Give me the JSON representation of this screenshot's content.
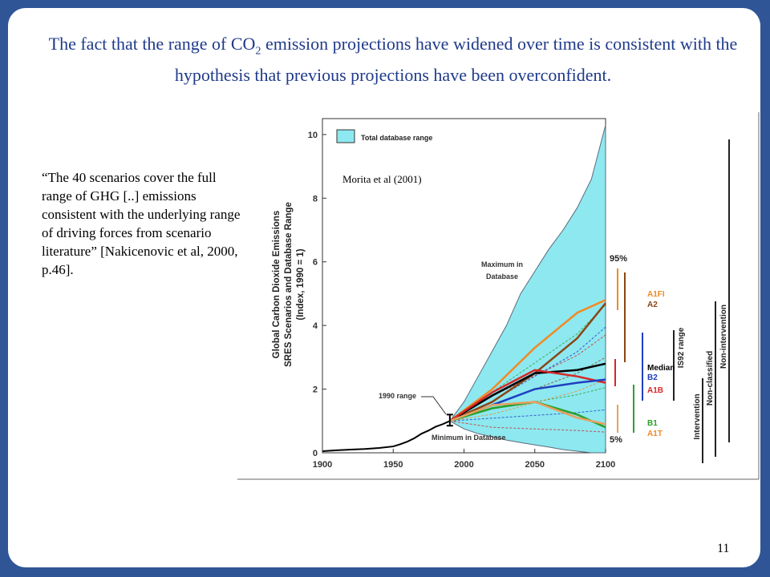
{
  "slide": {
    "title_part1": "The fact that the range of CO",
    "title_sub": "2",
    "title_part2": " emission projections have widened over time is consistent with the hypothesis that previous projections have been overconfident.",
    "quote": "“The 40 scenarios cover the full range of GHG [..] emissions consistent with the underlying range of driving forces from scenario literature” [Nakicenovic et al, 2000, p.46].",
    "page_number": "11"
  },
  "colors": {
    "background": "#2f5597",
    "title": "#1f3a8a",
    "database_range": "#8ee8f0",
    "historical": "#000000"
  },
  "chart_data": {
    "type": "area",
    "citation": "Morita et al (2001)",
    "ylabel_lines": [
      "Global Carbon Dioxide Emissions",
      "SRES Scenarios and Database Range",
      "(Index, 1990 = 1)"
    ],
    "x_ticks": [
      "1900",
      "1950",
      "2000",
      "2050",
      "2100"
    ],
    "y_ticks": [
      "0",
      "2",
      "4",
      "6",
      "8",
      "10"
    ],
    "xlim": [
      1900,
      2100
    ],
    "ylim": [
      0,
      10.5
    ],
    "legend": "Total database range",
    "annotations": {
      "max": [
        "Maximum in",
        "Database"
      ],
      "min": "Minimum in  Database",
      "range_1990": "1990 range"
    },
    "database_range": {
      "x": [
        1990,
        2000,
        2010,
        2020,
        2030,
        2040,
        2050,
        2060,
        2070,
        2080,
        2090,
        2100
      ],
      "upper": [
        1.0,
        1.6,
        2.4,
        3.2,
        4.0,
        5.0,
        5.7,
        6.4,
        7.0,
        7.7,
        8.6,
        10.3
      ],
      "lower": [
        1.0,
        0.75,
        0.6,
        0.5,
        0.4,
        0.32,
        0.25,
        0.18,
        0.1,
        0.05,
        0.0,
        0.0
      ]
    },
    "historical": {
      "x": [
        1900,
        1910,
        1920,
        1930,
        1940,
        1950,
        1955,
        1960,
        1965,
        1970,
        1975,
        1980,
        1985,
        1990
      ],
      "y": [
        0.05,
        0.08,
        0.1,
        0.12,
        0.15,
        0.2,
        0.27,
        0.35,
        0.46,
        0.6,
        0.7,
        0.82,
        0.9,
        1.0
      ]
    },
    "series": [
      {
        "name": "A1FI",
        "color": "#f08a24",
        "x": [
          1990,
          2020,
          2050,
          2080,
          2100
        ],
        "y": [
          1.0,
          2.0,
          3.3,
          4.4,
          4.8
        ]
      },
      {
        "name": "A2",
        "color": "#8b4513",
        "x": [
          1990,
          2020,
          2050,
          2080,
          2100
        ],
        "y": [
          1.0,
          1.6,
          2.5,
          3.6,
          4.7
        ]
      },
      {
        "name": "Median",
        "color": "#000000",
        "x": [
          1990,
          2020,
          2050,
          2080,
          2100
        ],
        "y": [
          1.0,
          1.8,
          2.5,
          2.6,
          2.8
        ]
      },
      {
        "name": "A1B",
        "color": "#d62728",
        "x": [
          1990,
          2020,
          2050,
          2080,
          2100
        ],
        "y": [
          1.0,
          1.9,
          2.6,
          2.4,
          2.2
        ]
      },
      {
        "name": "B2",
        "color": "#1f3fbf",
        "x": [
          1990,
          2020,
          2050,
          2080,
          2100
        ],
        "y": [
          1.0,
          1.5,
          2.0,
          2.2,
          2.3
        ]
      },
      {
        "name": "B1",
        "color": "#2ca02c",
        "x": [
          1990,
          2020,
          2050,
          2080,
          2100
        ],
        "y": [
          1.0,
          1.4,
          1.6,
          1.2,
          0.8
        ]
      },
      {
        "name": "A1T",
        "color": "#e8a060",
        "x": [
          1990,
          2020,
          2050,
          2080,
          2100
        ],
        "y": [
          1.0,
          1.5,
          1.6,
          1.1,
          0.9
        ]
      }
    ],
    "side_panel": {
      "percentile_labels": {
        "top": "95%",
        "bottom": "5%"
      },
      "scenario_labels": [
        {
          "text": "A1FI",
          "color": "#f08a24"
        },
        {
          "text": "A2",
          "color": "#8b4513"
        },
        {
          "text": "Median",
          "color": "#000000"
        },
        {
          "text": "B2",
          "color": "#1f3fbf"
        },
        {
          "text": "A1B",
          "color": "#d62728"
        },
        {
          "text": "B1",
          "color": "#2ca02c"
        },
        {
          "text": "A1T",
          "color": "#f08a24"
        }
      ],
      "category_labels": [
        "IS92 range",
        "Intervention",
        "Non-classified",
        "Non-intervention"
      ]
    }
  }
}
